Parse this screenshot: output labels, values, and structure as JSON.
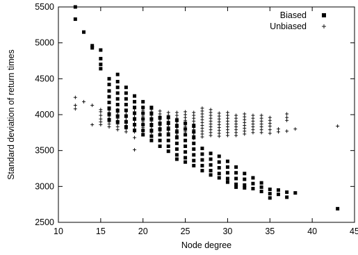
{
  "chart_data": {
    "type": "scatter",
    "title": "",
    "xlabel": "Node degree",
    "ylabel": "Standard deviation of return times",
    "xlim": [
      10,
      45
    ],
    "ylim": [
      2500,
      5500
    ],
    "x_ticks": [
      "10",
      "15",
      "20",
      "25",
      "30",
      "35",
      "40",
      "45"
    ],
    "y_ticks": [
      "2500",
      "3000",
      "3500",
      "4000",
      "4500",
      "5000",
      "5500"
    ],
    "grid": false,
    "legend_position": "top-right",
    "series": [
      {
        "name": "Biased",
        "marker": "filled-square",
        "color": "#000000",
        "points": [
          [
            12,
            5500
          ],
          [
            12,
            5330
          ],
          [
            13,
            5150
          ],
          [
            14,
            4960
          ],
          [
            14,
            4930
          ],
          [
            15,
            4900
          ],
          [
            15,
            4780
          ],
          [
            15,
            4700
          ],
          [
            15,
            4640
          ],
          [
            16,
            4500
          ],
          [
            16,
            4420
          ],
          [
            16,
            4330
          ],
          [
            16,
            4250
          ],
          [
            16,
            4170
          ],
          [
            16,
            4090
          ],
          [
            16,
            4010
          ],
          [
            16,
            3930
          ],
          [
            17,
            4560
          ],
          [
            17,
            4460
          ],
          [
            17,
            4380
          ],
          [
            17,
            4300
          ],
          [
            17,
            4220
          ],
          [
            17,
            4140
          ],
          [
            17,
            4060
          ],
          [
            17,
            3980
          ],
          [
            17,
            3900
          ],
          [
            18,
            4380
          ],
          [
            18,
            4300
          ],
          [
            18,
            4220
          ],
          [
            18,
            4140
          ],
          [
            18,
            4060
          ],
          [
            18,
            3980
          ],
          [
            18,
            3900
          ],
          [
            18,
            3830
          ],
          [
            19,
            4260
          ],
          [
            19,
            4180
          ],
          [
            19,
            4100
          ],
          [
            19,
            4020
          ],
          [
            19,
            3940
          ],
          [
            19,
            3860
          ],
          [
            19,
            3780
          ],
          [
            20,
            4180
          ],
          [
            20,
            4100
          ],
          [
            20,
            4020
          ],
          [
            20,
            3940
          ],
          [
            20,
            3860
          ],
          [
            20,
            3780
          ],
          [
            20,
            3720
          ],
          [
            21,
            4100
          ],
          [
            21,
            4020
          ],
          [
            21,
            3940
          ],
          [
            21,
            3860
          ],
          [
            21,
            3780
          ],
          [
            21,
            3700
          ],
          [
            21,
            3640
          ],
          [
            22,
            3960
          ],
          [
            22,
            3880
          ],
          [
            22,
            3800
          ],
          [
            22,
            3720
          ],
          [
            22,
            3640
          ],
          [
            22,
            3560
          ],
          [
            23,
            3960
          ],
          [
            23,
            3880
          ],
          [
            23,
            3800
          ],
          [
            23,
            3720
          ],
          [
            23,
            3640
          ],
          [
            23,
            3560
          ],
          [
            23,
            3490
          ],
          [
            24,
            3920
          ],
          [
            24,
            3840
          ],
          [
            24,
            3760
          ],
          [
            24,
            3680
          ],
          [
            24,
            3600
          ],
          [
            24,
            3520
          ],
          [
            24,
            3440
          ],
          [
            24,
            3380
          ],
          [
            25,
            3880
          ],
          [
            25,
            3800
          ],
          [
            25,
            3720
          ],
          [
            25,
            3640
          ],
          [
            25,
            3560
          ],
          [
            25,
            3480
          ],
          [
            25,
            3400
          ],
          [
            25,
            3340
          ],
          [
            26,
            3840
          ],
          [
            26,
            3760
          ],
          [
            26,
            3680
          ],
          [
            26,
            3600
          ],
          [
            26,
            3520
          ],
          [
            26,
            3440
          ],
          [
            26,
            3360
          ],
          [
            26,
            3290
          ],
          [
            27,
            3530
          ],
          [
            27,
            3450
          ],
          [
            27,
            3370
          ],
          [
            27,
            3290
          ],
          [
            27,
            3220
          ],
          [
            28,
            3460
          ],
          [
            28,
            3380
          ],
          [
            28,
            3300
          ],
          [
            28,
            3220
          ],
          [
            28,
            3160
          ],
          [
            29,
            3420
          ],
          [
            29,
            3340
          ],
          [
            29,
            3260
          ],
          [
            29,
            3180
          ],
          [
            29,
            3120
          ],
          [
            30,
            3350
          ],
          [
            30,
            3270
          ],
          [
            30,
            3190
          ],
          [
            30,
            3110
          ],
          [
            30,
            3060
          ],
          [
            31,
            3270
          ],
          [
            31,
            3190
          ],
          [
            31,
            3110
          ],
          [
            31,
            3030
          ],
          [
            31,
            2990
          ],
          [
            32,
            3180
          ],
          [
            32,
            3100
          ],
          [
            32,
            3020
          ],
          [
            32,
            2980
          ],
          [
            33,
            3120
          ],
          [
            33,
            3040
          ],
          [
            33,
            2970
          ],
          [
            34,
            3050
          ],
          [
            34,
            2990
          ],
          [
            34,
            2930
          ],
          [
            35,
            2960
          ],
          [
            35,
            2900
          ],
          [
            35,
            2840
          ],
          [
            36,
            2950
          ],
          [
            36,
            2890
          ],
          [
            37,
            2920
          ],
          [
            37,
            2850
          ],
          [
            38,
            2910
          ],
          [
            43,
            2690
          ]
        ]
      },
      {
        "name": "Unbiased",
        "marker": "plus",
        "color": "#000000",
        "points": [
          [
            12,
            4240
          ],
          [
            12,
            4130
          ],
          [
            12,
            4080
          ],
          [
            13,
            4180
          ],
          [
            14,
            4130
          ],
          [
            14,
            3860
          ],
          [
            15,
            4070
          ],
          [
            15,
            4040
          ],
          [
            15,
            3990
          ],
          [
            15,
            3940
          ],
          [
            15,
            3900
          ],
          [
            15,
            3860
          ],
          [
            16,
            4060
          ],
          [
            16,
            4020
          ],
          [
            16,
            3980
          ],
          [
            16,
            3940
          ],
          [
            16,
            3900
          ],
          [
            16,
            3870
          ],
          [
            16,
            3830
          ],
          [
            17,
            4070
          ],
          [
            17,
            4030
          ],
          [
            17,
            3990
          ],
          [
            17,
            3950
          ],
          [
            17,
            3910
          ],
          [
            17,
            3870
          ],
          [
            17,
            3830
          ],
          [
            17,
            3790
          ],
          [
            18,
            4040
          ],
          [
            18,
            4000
          ],
          [
            18,
            3960
          ],
          [
            18,
            3920
          ],
          [
            18,
            3880
          ],
          [
            18,
            3840
          ],
          [
            18,
            3800
          ],
          [
            18,
            3760
          ],
          [
            19,
            4080
          ],
          [
            19,
            4040
          ],
          [
            19,
            4000
          ],
          [
            19,
            3960
          ],
          [
            19,
            3920
          ],
          [
            19,
            3880
          ],
          [
            19,
            3840
          ],
          [
            19,
            3800
          ],
          [
            19,
            3760
          ],
          [
            19,
            3680
          ],
          [
            19,
            3510
          ],
          [
            20,
            4100
          ],
          [
            20,
            4060
          ],
          [
            20,
            4020
          ],
          [
            20,
            3980
          ],
          [
            20,
            3940
          ],
          [
            20,
            3900
          ],
          [
            20,
            3860
          ],
          [
            20,
            3820
          ],
          [
            20,
            3780
          ],
          [
            20,
            3740
          ],
          [
            21,
            4070
          ],
          [
            21,
            4030
          ],
          [
            21,
            3990
          ],
          [
            21,
            3950
          ],
          [
            21,
            3910
          ],
          [
            21,
            3870
          ],
          [
            21,
            3830
          ],
          [
            21,
            3790
          ],
          [
            21,
            3750
          ],
          [
            22,
            4050
          ],
          [
            22,
            4010
          ],
          [
            22,
            3970
          ],
          [
            22,
            3930
          ],
          [
            22,
            3890
          ],
          [
            22,
            3850
          ],
          [
            22,
            3810
          ],
          [
            22,
            3770
          ],
          [
            23,
            4030
          ],
          [
            23,
            3990
          ],
          [
            23,
            3950
          ],
          [
            23,
            3910
          ],
          [
            23,
            3870
          ],
          [
            23,
            3830
          ],
          [
            23,
            3790
          ],
          [
            23,
            3750
          ],
          [
            24,
            4030
          ],
          [
            24,
            3990
          ],
          [
            24,
            3950
          ],
          [
            24,
            3910
          ],
          [
            24,
            3870
          ],
          [
            24,
            3830
          ],
          [
            24,
            3790
          ],
          [
            24,
            3750
          ],
          [
            24,
            3710
          ],
          [
            25,
            4040
          ],
          [
            25,
            4000
          ],
          [
            25,
            3960
          ],
          [
            25,
            3920
          ],
          [
            25,
            3880
          ],
          [
            25,
            3840
          ],
          [
            25,
            3800
          ],
          [
            25,
            3760
          ],
          [
            25,
            3720
          ],
          [
            26,
            4030
          ],
          [
            26,
            3990
          ],
          [
            26,
            3950
          ],
          [
            26,
            3910
          ],
          [
            26,
            3870
          ],
          [
            26,
            3830
          ],
          [
            26,
            3790
          ],
          [
            26,
            3750
          ],
          [
            26,
            3710
          ],
          [
            26,
            3670
          ],
          [
            27,
            4090
          ],
          [
            27,
            4050
          ],
          [
            27,
            4010
          ],
          [
            27,
            3970
          ],
          [
            27,
            3930
          ],
          [
            27,
            3890
          ],
          [
            27,
            3850
          ],
          [
            27,
            3810
          ],
          [
            27,
            3770
          ],
          [
            27,
            3730
          ],
          [
            27,
            3690
          ],
          [
            28,
            4070
          ],
          [
            28,
            4030
          ],
          [
            28,
            3990
          ],
          [
            28,
            3950
          ],
          [
            28,
            3910
          ],
          [
            28,
            3870
          ],
          [
            28,
            3830
          ],
          [
            28,
            3790
          ],
          [
            28,
            3750
          ],
          [
            28,
            3710
          ],
          [
            29,
            4020
          ],
          [
            29,
            3980
          ],
          [
            29,
            3940
          ],
          [
            29,
            3900
          ],
          [
            29,
            3860
          ],
          [
            29,
            3820
          ],
          [
            29,
            3780
          ],
          [
            29,
            3740
          ],
          [
            29,
            3700
          ],
          [
            30,
            4030
          ],
          [
            30,
            3990
          ],
          [
            30,
            3950
          ],
          [
            30,
            3910
          ],
          [
            30,
            3870
          ],
          [
            30,
            3830
          ],
          [
            30,
            3790
          ],
          [
            30,
            3750
          ],
          [
            30,
            3710
          ],
          [
            31,
            3990
          ],
          [
            31,
            3950
          ],
          [
            31,
            3910
          ],
          [
            31,
            3870
          ],
          [
            31,
            3830
          ],
          [
            31,
            3790
          ],
          [
            31,
            3750
          ],
          [
            31,
            3710
          ],
          [
            32,
            4010
          ],
          [
            32,
            3970
          ],
          [
            32,
            3930
          ],
          [
            32,
            3890
          ],
          [
            32,
            3850
          ],
          [
            32,
            3810
          ],
          [
            32,
            3770
          ],
          [
            32,
            3730
          ],
          [
            33,
            3990
          ],
          [
            33,
            3950
          ],
          [
            33,
            3910
          ],
          [
            33,
            3870
          ],
          [
            33,
            3830
          ],
          [
            33,
            3790
          ],
          [
            33,
            3750
          ],
          [
            34,
            3990
          ],
          [
            34,
            3950
          ],
          [
            34,
            3910
          ],
          [
            34,
            3870
          ],
          [
            34,
            3830
          ],
          [
            34,
            3790
          ],
          [
            34,
            3750
          ],
          [
            35,
            3960
          ],
          [
            35,
            3920
          ],
          [
            35,
            3880
          ],
          [
            35,
            3840
          ],
          [
            35,
            3790
          ],
          [
            35,
            3740
          ],
          [
            36,
            3800
          ],
          [
            36,
            3760
          ],
          [
            37,
            4010
          ],
          [
            37,
            3960
          ],
          [
            37,
            3920
          ],
          [
            37,
            3770
          ],
          [
            38,
            3800
          ],
          [
            43,
            3840
          ]
        ]
      }
    ]
  }
}
